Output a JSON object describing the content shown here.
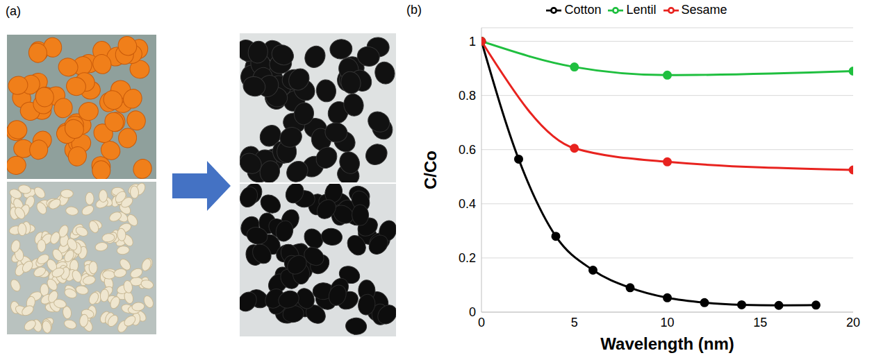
{
  "panel_labels": [
    "(a)",
    "(b)"
  ],
  "chart_data": {
    "type": "line",
    "x_label": "Wavelength (nm)",
    "y_label": "C/Co",
    "xlim": [
      0,
      20
    ],
    "xticks": [
      0,
      5,
      10,
      15,
      20
    ],
    "ylim": [
      0,
      1.05
    ],
    "yticks": [
      0,
      0.2,
      0.4,
      0.6,
      0.8,
      1
    ],
    "grid": true,
    "legend": "top",
    "marker": "circle",
    "series": [
      {
        "name": "Cotton",
        "color": "#000000",
        "x": [
          0,
          2,
          4,
          6,
          8,
          10,
          12,
          14,
          16,
          18
        ],
        "values": [
          1,
          0.565,
          0.28,
          0.155,
          0.09,
          0.053,
          0.035,
          0.027,
          0.025,
          0.026
        ]
      },
      {
        "name": "Lentil",
        "color": "#1fbf3f",
        "x": [
          0,
          5,
          10,
          20
        ],
        "values": [
          1,
          0.905,
          0.875,
          0.89
        ]
      },
      {
        "name": "Sesame",
        "color": "#e8231f",
        "x": [
          0,
          5,
          10,
          20
        ],
        "values": [
          1,
          0.605,
          0.555,
          0.525
        ]
      }
    ]
  }
}
